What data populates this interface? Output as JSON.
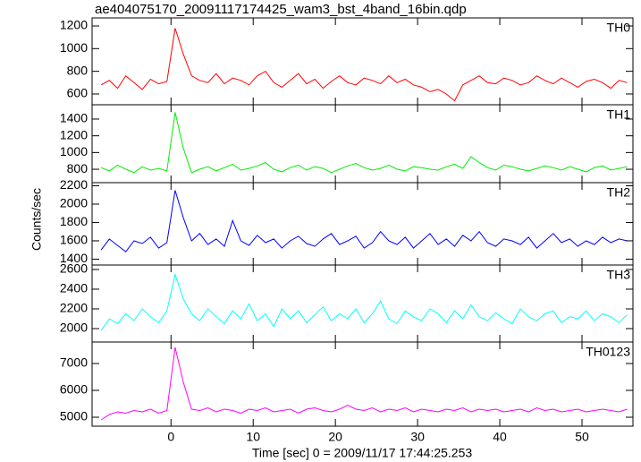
{
  "chart_data": {
    "type": "line",
    "title": "ae404075170_20091117174425_wam3_bst_4band_16bin.qdp",
    "xlabel": "Time [sec] 0 = 2009/11/17 17:44:25.253",
    "ylabel": "Counts/sec",
    "xlim": [
      -9.6,
      56.2
    ],
    "xticks": [
      0,
      10,
      20,
      30,
      40,
      50
    ],
    "x": [
      -8.5,
      -7.5,
      -6.5,
      -5.5,
      -4.5,
      -3.5,
      -2.5,
      -1.5,
      -0.5,
      0.5,
      1.5,
      2.5,
      3.5,
      4.5,
      5.5,
      6.5,
      7.5,
      8.5,
      9.5,
      10.5,
      11.5,
      12.5,
      13.5,
      14.5,
      15.5,
      16.5,
      17.5,
      18.5,
      19.5,
      20.5,
      21.5,
      22.5,
      23.5,
      24.5,
      25.5,
      26.5,
      27.5,
      28.5,
      29.5,
      30.5,
      31.5,
      32.5,
      33.5,
      34.5,
      35.5,
      36.5,
      37.5,
      38.5,
      39.5,
      40.5,
      41.5,
      42.5,
      43.5,
      44.5,
      45.5,
      46.5,
      47.5,
      48.5,
      49.5,
      50.5,
      51.5,
      52.5,
      53.5,
      54.5,
      55.5
    ],
    "series": [
      {
        "name": "TH0",
        "color": "#ff0000",
        "ylim": [
          505,
          1271
        ],
        "yticks": [
          600,
          800,
          1000,
          1200
        ],
        "values": [
          680,
          720,
          650,
          760,
          700,
          640,
          730,
          690,
          710,
          1180,
          950,
          760,
          720,
          700,
          780,
          690,
          740,
          720,
          680,
          760,
          800,
          700,
          660,
          720,
          780,
          690,
          730,
          650,
          710,
          760,
          700,
          680,
          740,
          720,
          690,
          760,
          700,
          730,
          680,
          660,
          620,
          640,
          600,
          540,
          680,
          720,
          760,
          700,
          690,
          740,
          720,
          680,
          700,
          760,
          720,
          690,
          740,
          700,
          660,
          710,
          730,
          700,
          650,
          720,
          700
        ]
      },
      {
        "name": "TH1",
        "color": "#00ee00",
        "ylim": [
          640,
          1571
        ],
        "yticks": [
          800,
          1000,
          1200,
          1400
        ],
        "values": [
          820,
          780,
          850,
          800,
          760,
          830,
          790,
          810,
          780,
          1480,
          1050,
          760,
          800,
          830,
          780,
          820,
          860,
          790,
          810,
          840,
          880,
          800,
          770,
          820,
          850,
          790,
          830,
          810,
          760,
          800,
          840,
          870,
          820,
          790,
          810,
          850,
          800,
          780,
          830,
          820,
          800,
          790,
          830,
          860,
          810,
          950,
          880,
          820,
          790,
          850,
          830,
          800,
          780,
          810,
          840,
          820,
          790,
          830,
          800,
          770,
          820,
          840,
          790,
          810,
          830
        ]
      },
      {
        "name": "TH2",
        "color": "#0000ff",
        "ylim": [
          1336,
          2234
        ],
        "yticks": [
          1400,
          1600,
          1800,
          2000,
          2200
        ],
        "values": [
          1500,
          1620,
          1550,
          1480,
          1600,
          1570,
          1640,
          1520,
          1580,
          2150,
          1850,
          1600,
          1680,
          1560,
          1620,
          1540,
          1820,
          1600,
          1550,
          1660,
          1580,
          1620,
          1520,
          1600,
          1650,
          1570,
          1540,
          1620,
          1680,
          1560,
          1600,
          1650,
          1520,
          1580,
          1700,
          1600,
          1560,
          1640,
          1520,
          1600,
          1680,
          1560,
          1620,
          1540,
          1660,
          1600,
          1700,
          1580,
          1540,
          1620,
          1600,
          1560,
          1640,
          1520,
          1600,
          1680,
          1580,
          1620,
          1540,
          1600,
          1560,
          1640,
          1580,
          1620,
          1600
        ]
      },
      {
        "name": "TH3",
        "color": "#00ffff",
        "ylim": [
          1864,
          2645
        ],
        "yticks": [
          2000,
          2200,
          2400,
          2600
        ],
        "values": [
          1980,
          2100,
          2050,
          2150,
          2080,
          2200,
          2120,
          2060,
          2180,
          2550,
          2300,
          2150,
          2080,
          2200,
          2120,
          2050,
          2180,
          2100,
          2250,
          2080,
          2150,
          2020,
          2200,
          2100,
          2180,
          2060,
          2140,
          2220,
          2080,
          2150,
          2100,
          2200,
          2060,
          2150,
          2280,
          2100,
          2050,
          2180,
          2120,
          2080,
          2200,
          2150,
          2060,
          2180,
          2100,
          2240,
          2120,
          2080,
          2160,
          2100,
          2050,
          2200,
          2120,
          2080,
          2150,
          2180,
          2060,
          2120,
          2100,
          2180,
          2080,
          2150,
          2120,
          2060,
          2140
        ]
      },
      {
        "name": "TH0123",
        "color": "#ff00ff",
        "ylim": [
          4667,
          7800
        ],
        "yticks": [
          5000,
          6000,
          7000
        ],
        "values": [
          4900,
          5100,
          5200,
          5150,
          5250,
          5200,
          5300,
          5150,
          5250,
          7600,
          6300,
          5300,
          5250,
          5350,
          5200,
          5300,
          5250,
          5150,
          5300,
          5250,
          5350,
          5200,
          5250,
          5300,
          5150,
          5300,
          5350,
          5250,
          5200,
          5300,
          5450,
          5300,
          5250,
          5350,
          5200,
          5300,
          5250,
          5350,
          5200,
          5300,
          5250,
          5200,
          5300,
          5250,
          5350,
          5200,
          5300,
          5250,
          5300,
          5200,
          5250,
          5300,
          5200,
          5350,
          5250,
          5300,
          5200,
          5250,
          5300,
          5200,
          5250,
          5300,
          5250,
          5200,
          5300
        ]
      }
    ]
  }
}
